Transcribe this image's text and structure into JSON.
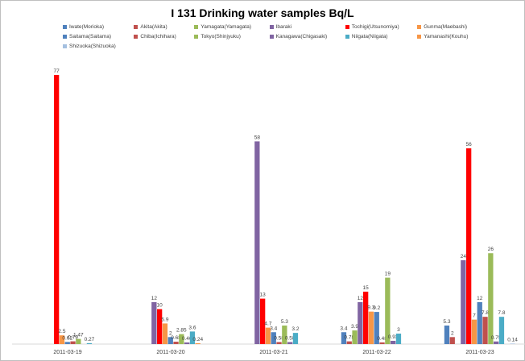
{
  "chart_data": {
    "type": "bar",
    "title": "I 131 Drinking water samples Bq/L",
    "xlabel": "",
    "ylabel": "",
    "ylim": [
      0,
      80
    ],
    "grid": false,
    "legend_position": "top",
    "categories": [
      "2011-03-19",
      "2011-03-20",
      "2011-03-21",
      "2011-03-22",
      "2011-03-23"
    ],
    "series": [
      {
        "name": "Iwate(Morioka)",
        "color": "#4f81bd",
        "values": [
          null,
          null,
          null,
          3.4,
          5.3
        ],
        "labels": [
          "",
          "",
          "",
          "3.4",
          "5.3"
        ]
      },
      {
        "name": "Akita(Akita)",
        "color": "#c0504d",
        "values": [
          null,
          null,
          null,
          0.78,
          2
        ],
        "labels": [
          "",
          "",
          "",
          "0.78",
          "2"
        ]
      },
      {
        "name": "Yamagata(Yamagata)",
        "color": "#9bbb59",
        "values": [
          null,
          null,
          null,
          3.9,
          null
        ],
        "labels": [
          "",
          "",
          "",
          "3.9",
          ""
        ]
      },
      {
        "name": "Ibaraki",
        "color": "#8064a2",
        "values": [
          null,
          12,
          58,
          12,
          24
        ],
        "labels": [
          "",
          "12",
          "58",
          "12",
          "24"
        ]
      },
      {
        "name": "Tochigi(Utsunomiya)",
        "color": "#ff0000",
        "values": [
          77,
          10,
          13,
          15,
          56
        ],
        "labels": [
          "77",
          "10",
          "13",
          "15",
          "56"
        ]
      },
      {
        "name": "Gunma(Maebashi)",
        "color": "#f79646",
        "values": [
          2.5,
          5.9,
          4.7,
          9.3,
          7
        ],
        "labels": [
          "2.5",
          "5.9",
          "4.7",
          "9.3",
          "7"
        ]
      },
      {
        "name": "Saitama(Saitama)",
        "color": "#4f81bd",
        "values": [
          0.62,
          2,
          3.4,
          9.2,
          12
        ],
        "labels": [
          "0.62",
          "2",
          "3.4",
          "9.2",
          "12"
        ]
      },
      {
        "name": "Chiba(Ichihara)",
        "color": "#c0504d",
        "values": [
          0.79,
          0.68,
          0.58,
          0.48,
          7.8
        ],
        "labels": [
          "0.79",
          "0.68",
          "0.58",
          "0.48",
          "7.8"
        ]
      },
      {
        "name": "Tokyo(Shinjyuku)",
        "color": "#9bbb59",
        "values": [
          1.47,
          2.85,
          5.3,
          19,
          26
        ],
        "labels": [
          "1.47",
          "2.85",
          "5.3",
          "19",
          "26"
        ]
      },
      {
        "name": "Kanagawa(Chigasaki)",
        "color": "#8064a2",
        "values": [
          null,
          0.46,
          0.58,
          0.93,
          0.75
        ],
        "labels": [
          "",
          "0.46",
          "0.58",
          "0.93",
          "0.75"
        ]
      },
      {
        "name": "Niigata(Niigata)",
        "color": "#4bacc6",
        "values": [
          0.27,
          3.6,
          3.2,
          3,
          7.8
        ],
        "labels": [
          "0.27",
          "3.6",
          "3.2",
          "3",
          "7.8"
        ]
      },
      {
        "name": "Yamanashi(Kouhu)",
        "color": "#f79646",
        "values": [
          null,
          0.24,
          null,
          null,
          null
        ],
        "labels": [
          "",
          "0.24",
          "",
          "",
          ""
        ]
      },
      {
        "name": "Shizuoka(Shizuoka)",
        "color": "#a5c0e0",
        "values": [
          null,
          null,
          null,
          null,
          0.14
        ],
        "labels": [
          "",
          "",
          "",
          "",
          "0.14"
        ]
      }
    ]
  }
}
